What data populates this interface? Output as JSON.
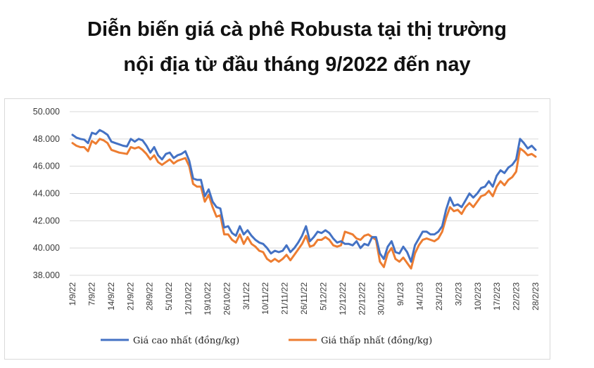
{
  "title_line1": "Diễn biến giá cà phê Robusta tại thị trường",
  "title_line2": "nội địa từ đầu tháng 9/2022 đến nay",
  "chart_data": {
    "type": "line",
    "ylim": [
      38000,
      50000
    ],
    "yticks": [
      "38.000",
      "40.000",
      "42.000",
      "44.000",
      "46.000",
      "48.000",
      "50.000"
    ],
    "ytick_values": [
      38000,
      40000,
      42000,
      44000,
      46000,
      48000,
      50000
    ],
    "xticks": [
      "1/9/22",
      "7/9/22",
      "14/9/22",
      "21/9/22",
      "28/9/22",
      "5/10/22",
      "12/10/22",
      "19/10/22",
      "26/10/22",
      "3/11/22",
      "10/11/22",
      "21/11/22",
      "26/11/22",
      "5/12/22",
      "12/12/22",
      "22/12/22",
      "30/12/22",
      "9/1/23",
      "14/1/23",
      "23/1/23",
      "3/2/23",
      "10/2/23",
      "17/2/23",
      "22/2/23",
      "28/2/23"
    ],
    "grid": true,
    "legend_position": "bottom",
    "colors": {
      "high": "#4472c4",
      "low": "#ed7d31",
      "grid": "#d9d9d9"
    },
    "series": [
      {
        "name": "Giá cao nhất (đồng/kg)",
        "values": [
          48300,
          48100,
          48000,
          47950,
          47700,
          48450,
          48350,
          48650,
          48500,
          48300,
          47800,
          47700,
          47600,
          47500,
          47450,
          48000,
          47800,
          48000,
          47900,
          47500,
          47000,
          47400,
          46800,
          46500,
          46900,
          47000,
          46600,
          46800,
          46900,
          47100,
          46400,
          45100,
          45000,
          45000,
          43800,
          44300,
          43400,
          43000,
          42900,
          41500,
          41600,
          41100,
          40900,
          41600,
          41000,
          41300,
          40900,
          40600,
          40400,
          40300,
          40000,
          39600,
          39800,
          39700,
          39800,
          40200,
          39700,
          40000,
          40400,
          40900,
          41600,
          40500,
          40800,
          41200,
          41100,
          41300,
          41100,
          40700,
          40400,
          40500,
          40300,
          40300,
          40200,
          40500,
          40000,
          40300,
          40200,
          40800,
          40800,
          39600,
          39200,
          40100,
          40500,
          39700,
          39600,
          40100,
          39700,
          39000,
          40200,
          40700,
          41200,
          41200,
          41000,
          41000,
          41200,
          41600,
          42800,
          43700,
          43100,
          43200,
          43000,
          43500,
          44000,
          43700,
          44000,
          44400,
          44500,
          44900,
          44500,
          45300,
          45700,
          45500,
          45900,
          46100,
          46500,
          48000,
          47700,
          47300,
          47500,
          47200
        ]
      },
      {
        "name": "Giá thấp nhất (đồng/kg)",
        "values": [
          47700,
          47500,
          47400,
          47400,
          47100,
          47850,
          47650,
          48000,
          47900,
          47700,
          47200,
          47100,
          47000,
          46950,
          46900,
          47400,
          47300,
          47400,
          47200,
          46900,
          46500,
          46800,
          46300,
          46100,
          46300,
          46500,
          46200,
          46400,
          46500,
          46600,
          46000,
          44700,
          44500,
          44500,
          43400,
          43900,
          43000,
          42300,
          42400,
          41000,
          41000,
          40600,
          40400,
          41000,
          40300,
          40800,
          40300,
          40100,
          39800,
          39700,
          39200,
          39000,
          39200,
          39000,
          39200,
          39500,
          39100,
          39500,
          39900,
          40300,
          40900,
          40100,
          40200,
          40600,
          40600,
          40800,
          40600,
          40200,
          40100,
          40200,
          41200,
          41100,
          41000,
          40700,
          40600,
          40900,
          41000,
          40800,
          40600,
          39000,
          38600,
          39600,
          40000,
          39200,
          39000,
          39300,
          38900,
          38500,
          39600,
          40200,
          40600,
          40700,
          40600,
          40500,
          40700,
          41200,
          42200,
          43000,
          42700,
          42800,
          42500,
          43000,
          43300,
          43000,
          43400,
          43800,
          43900,
          44200,
          43800,
          44500,
          44900,
          44600,
          45000,
          45200,
          45600,
          47300,
          47100,
          46800,
          46900,
          46700
        ]
      }
    ]
  }
}
